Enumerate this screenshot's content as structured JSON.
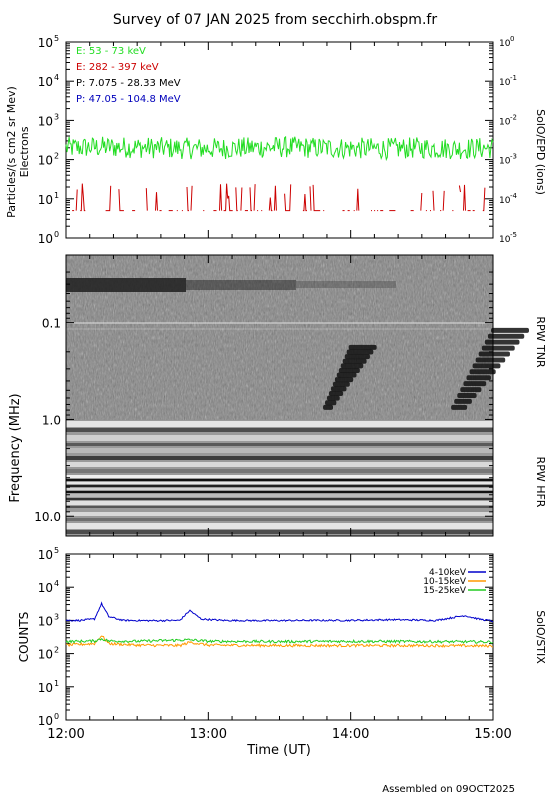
{
  "title": "Survey of 07 JAN 2025 from secchirh.obspm.fr",
  "footer": "Assembled on 09OCT2025",
  "time_axis": {
    "label": "Time (UT)",
    "ticks": [
      "12:00",
      "13:00",
      "14:00",
      "15:00"
    ],
    "range_hours": [
      12,
      15
    ]
  },
  "chart_data": [
    {
      "type": "line",
      "panel": "particles",
      "ylabel": "Particles/(s cm2 sr Mev)",
      "ylabel2": "Electrons",
      "right_label": "SolO/EPD (ions)",
      "scale": "log",
      "ylim": [
        1,
        100000
      ],
      "right_ylim": [
        1e-05,
        1
      ],
      "yticks": [
        {
          "label": "10",
          "exp": "0",
          "value": 1
        },
        {
          "label": "10",
          "exp": "1",
          "value": 10
        },
        {
          "label": "10",
          "exp": "2",
          "value": 100
        },
        {
          "label": "10",
          "exp": "3",
          "value": 1000
        },
        {
          "label": "10",
          "exp": "4",
          "value": 10000
        },
        {
          "label": "10",
          "exp": "5",
          "value": 100000
        }
      ],
      "right_yticks": [
        {
          "label": "10",
          "exp": "-5",
          "value": 1e-05
        },
        {
          "label": "10",
          "exp": "-4",
          "value": 0.0001
        },
        {
          "label": "10",
          "exp": "-3",
          "value": 0.001
        },
        {
          "label": "10",
          "exp": "-2",
          "value": 0.01
        },
        {
          "label": "10",
          "exp": "-1",
          "value": 0.1
        },
        {
          "label": "10",
          "exp": "0",
          "value": 1
        }
      ],
      "legend": [
        {
          "text": "E: 53 - 73 keV",
          "color": "#22dd22"
        },
        {
          "text": "E: 282 - 397 keV",
          "color": "#cc0000"
        },
        {
          "text": "P: 7.075 - 28.33 MeV",
          "color": "#000000"
        },
        {
          "text": "P: 47.05 - 104.8 MeV",
          "color": "#0000bb"
        }
      ],
      "series": [
        {
          "name": "E: 53 - 73 keV",
          "color": "#22dd22",
          "x_hours": [
            12.0,
            12.25,
            12.5,
            12.75,
            13.0,
            13.25,
            13.5,
            13.75,
            14.0,
            14.25,
            14.5,
            14.75,
            15.0
          ],
          "values": [
            200,
            210,
            205,
            195,
            190,
            200,
            210,
            200,
            195,
            190,
            200,
            190,
            200
          ]
        },
        {
          "name": "E: 282 - 397 keV",
          "color": "#cc0000",
          "x_hours": [
            12.0,
            12.25,
            12.5,
            12.75,
            13.0,
            13.25,
            13.5,
            13.75,
            14.0,
            14.25,
            14.5,
            14.75,
            15.0
          ],
          "values": [
            5,
            5,
            5,
            5,
            5,
            5,
            5,
            5,
            5,
            5,
            5,
            5,
            5
          ]
        }
      ]
    },
    {
      "type": "heatmap",
      "panel": "radio",
      "ylabel": "Frequency (MHz)",
      "right_labels": [
        "RPW TNR",
        "RPW HFR"
      ],
      "scale": "log",
      "ylim": [
        0.02,
        16
      ],
      "yticks": [
        {
          "label": "0.1",
          "value": 0.1
        },
        {
          "label": "1.0",
          "value": 1.0
        },
        {
          "label": "10.0",
          "value": 10.0
        }
      ],
      "features": [
        {
          "name": "dark band",
          "x_hours": [
            12.0,
            13.5
          ],
          "freq_mhz": [
            0.035,
            0.045
          ]
        },
        {
          "name": "drifting burst",
          "x_hours": [
            13.82,
            14.0
          ],
          "freq_mhz": [
            0.18,
            0.75
          ]
        },
        {
          "name": "drifting burst",
          "x_hours": [
            14.72,
            15.0
          ],
          "freq_mhz": [
            0.12,
            0.75
          ]
        }
      ]
    },
    {
      "type": "line",
      "panel": "stix",
      "ylabel": "COUNTS",
      "right_label": "SolO/STIX",
      "scale": "log",
      "ylim": [
        1,
        100000
      ],
      "yticks": [
        {
          "label": "10",
          "exp": "0",
          "value": 1
        },
        {
          "label": "10",
          "exp": "1",
          "value": 10
        },
        {
          "label": "10",
          "exp": "2",
          "value": 100
        },
        {
          "label": "10",
          "exp": "3",
          "value": 1000
        },
        {
          "label": "10",
          "exp": "4",
          "value": 10000
        },
        {
          "label": "10",
          "exp": "5",
          "value": 100000
        }
      ],
      "legend": [
        {
          "text": "4-10keV",
          "color": "#0000cc"
        },
        {
          "text": "10-15keV",
          "color": "#ff9900"
        },
        {
          "text": "15-25keV",
          "color": "#22cc22"
        }
      ],
      "series": [
        {
          "name": "4-10keV",
          "color": "#0000cc",
          "x_hours": [
            12.0,
            12.1,
            12.2,
            12.25,
            12.3,
            12.4,
            12.6,
            12.8,
            12.87,
            12.95,
            13.1,
            13.4,
            13.7,
            14.0,
            14.3,
            14.6,
            14.8,
            14.9,
            15.0
          ],
          "values": [
            1000,
            1000,
            1100,
            3200,
            1300,
            1000,
            980,
            1000,
            2000,
            1100,
            1000,
            980,
            1000,
            1000,
            1050,
            1000,
            1400,
            1100,
            950
          ]
        },
        {
          "name": "10-15keV",
          "color": "#ff9900",
          "x_hours": [
            12.0,
            12.2,
            12.25,
            12.3,
            12.5,
            12.8,
            12.87,
            13.0,
            13.5,
            14.0,
            14.5,
            15.0
          ],
          "values": [
            180,
            200,
            350,
            200,
            180,
            175,
            220,
            180,
            175,
            175,
            175,
            170
          ]
        },
        {
          "name": "15-25keV",
          "color": "#22cc22",
          "x_hours": [
            12.0,
            12.2,
            12.25,
            12.3,
            12.5,
            12.87,
            13.0,
            13.5,
            14.0,
            14.5,
            15.0
          ],
          "values": [
            230,
            240,
            280,
            240,
            235,
            260,
            235,
            230,
            235,
            230,
            225
          ]
        }
      ]
    }
  ]
}
